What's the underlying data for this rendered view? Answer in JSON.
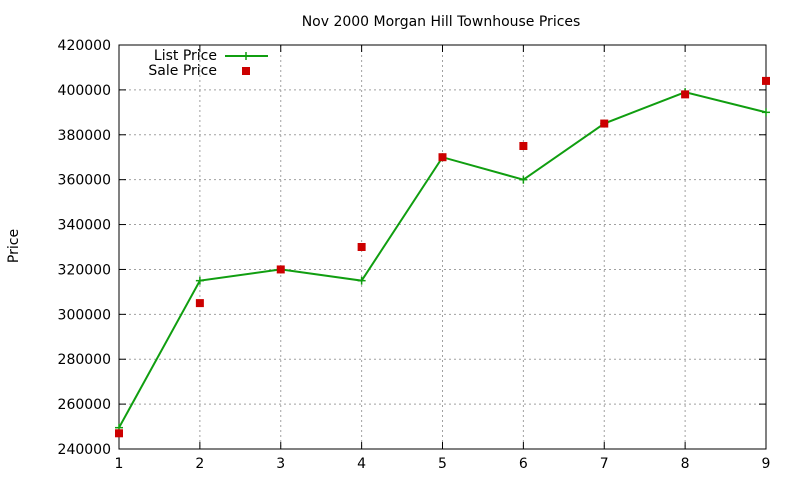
{
  "chart_data": {
    "type": "line",
    "title": "Nov 2000 Morgan Hill Townhouse Prices",
    "xlabel": "",
    "ylabel": "Price",
    "xlim": [
      1,
      9
    ],
    "ylim": [
      240000,
      420000
    ],
    "xticks": [
      1,
      2,
      3,
      4,
      5,
      6,
      7,
      8,
      9
    ],
    "yticks": [
      240000,
      260000,
      280000,
      300000,
      320000,
      340000,
      360000,
      380000,
      400000,
      420000
    ],
    "grid": true,
    "legend_position": "top-left",
    "x": [
      1,
      2,
      3,
      4,
      5,
      6,
      7,
      8,
      9
    ],
    "series": [
      {
        "name": "List Price",
        "style": "line-plus",
        "color": "#109e10",
        "values": [
          249500,
          315000,
          320000,
          315000,
          370000,
          360000,
          385000,
          399000,
          390000
        ]
      },
      {
        "name": "Sale Price",
        "style": "square-points",
        "color": "#cc0000",
        "values": [
          247000,
          305000,
          320000,
          330000,
          370000,
          375000,
          385000,
          398000,
          404000
        ]
      }
    ]
  }
}
